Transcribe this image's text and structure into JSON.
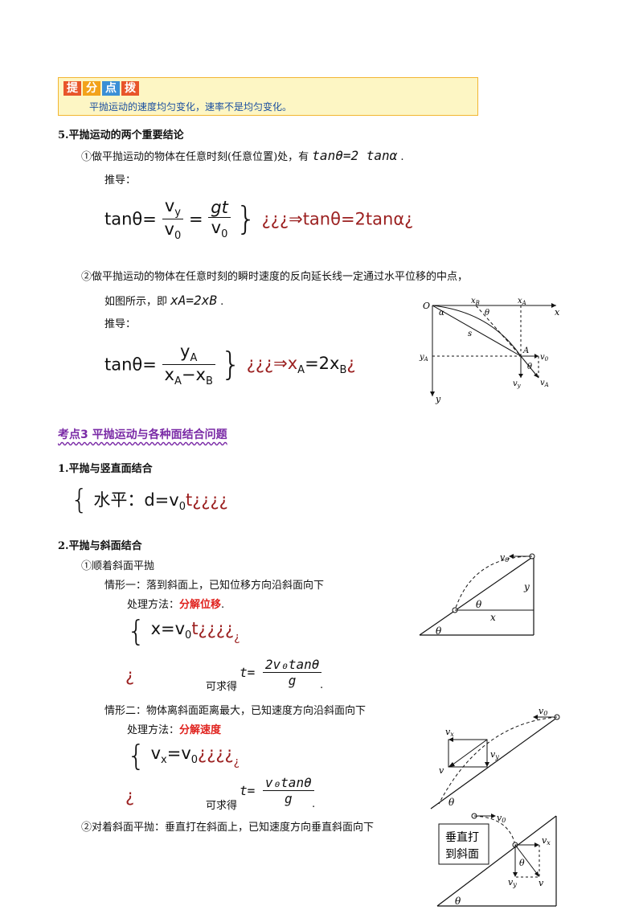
{
  "tip": {
    "tags": [
      "提",
      "分",
      "点",
      "拨"
    ],
    "tag_colors": [
      "#e8552a",
      "#f2a21a",
      "#3a8fd6",
      "#e8552a"
    ],
    "text": "平抛运动的速度均匀变化，速率不是均匀变化。"
  },
  "s5": {
    "heading": "5.平抛运动的两个重要结论",
    "c1_prefix": "①做平抛运动的物体在任意时刻(任意位置)处，有",
    "c1_formula": "tanθ=2 tanα",
    "c1_suffix": ".",
    "derive1": "推导：",
    "f1": {
      "lhs": "tanθ=",
      "n1": "v",
      "n1sub": "y",
      "d1": "v",
      "d1sub": "0",
      "eq": "=",
      "n2": "gt",
      "d2": "v",
      "d2sub": "0",
      "tail": "¿¿¿⇒tanθ=2tanα¿"
    },
    "c2_line1": "②做平抛运动的物体在任意时刻的瞬时速度的反向延长线一定通过水平位移的中点，",
    "c2_line2_prefix": "如图所示，即",
    "c2_formula": "xA=2xB",
    "c2_suffix": ".",
    "derive2": "推导：",
    "f2": {
      "lhs": "tanθ=",
      "num": "y",
      "numsub": "A",
      "den_a": "x",
      "den_asub": "A",
      "den_minus": "−",
      "den_b": "x",
      "den_bsub": "B",
      "tail1": "¿¿¿⇒x",
      "tail1sub": "A",
      "tail2": "=2x",
      "tail2sub": "B",
      "tail3": "¿"
    }
  },
  "fig1": {
    "O": "O",
    "x": "x",
    "y": "y",
    "xB": "x",
    "xBsub": "B",
    "xA": "x",
    "xAsub": "A",
    "alpha": "α",
    "theta": "θ",
    "s": "s",
    "A": "A",
    "yA": "y",
    "yAsub": "A",
    "v0": "v",
    "v0sub": "0",
    "vy": "v",
    "vysub": "y",
    "vA": "v",
    "vAsub": "A",
    "theta2": "θ"
  },
  "k3": {
    "heading": "考点3  平抛运动与各种面结合问题",
    "h1": "1.平抛与竖直面结合",
    "f_vertical": "水平：d=v",
    "f_vertical_sub": "0",
    "f_vertical_tail": "t¿¿¿¿",
    "h2": "2.平抛与斜面结合",
    "item1": "①顺着斜面平抛",
    "case1": "情形一：落到斜面上，已知位移方向沿斜面向下",
    "method1_prefix": "处理方法：",
    "method1_key": "分解位移",
    "method1_suffix": ".",
    "f_case1": "x=v",
    "f_case1_sub": "0",
    "f_case1_tail": "t¿¿¿¿",
    "f_case1_q": "¿",
    "f_case1_q2": "¿",
    "result_prefix": "可求得",
    "t1_lhs": "t=",
    "t1_num": "2v₀tanθ",
    "t1_den": "g",
    "t1_suffix": ".",
    "case2": "情形二：物体离斜面距离最大，已知速度方向沿斜面向下",
    "method2_prefix": "处理方法：",
    "method2_key": "分解速度",
    "f_case2": "v",
    "f_case2_sub": "x",
    "f_case2_mid": "=v",
    "f_case2_sub2": "0",
    "f_case2_tail": "¿¿¿¿",
    "f_case2_q": "¿",
    "f_case2_q2": "¿",
    "t2_lhs": "t=",
    "t2_num": "v₀tanθ",
    "t2_den": "g",
    "t2_suffix": ".",
    "item2": "②对着斜面平抛：垂直打在斜面上，已知速度方向垂直斜面向下"
  },
  "fig2": {
    "v0": "v",
    "v0sub": "0",
    "y": "y",
    "theta": "θ",
    "x": "x",
    "theta_base": "θ"
  },
  "fig3": {
    "v0": "v",
    "v0sub": "0",
    "vx": "v",
    "vxsub": "x",
    "vy": "v",
    "vysub": "y",
    "v": "v",
    "theta": "θ"
  },
  "fig4": {
    "v0": "v",
    "v0sub": "0",
    "label1": "垂直打",
    "label2": "到斜面",
    "vx": "v",
    "vxsub": "x",
    "theta": "θ",
    "vy": "v",
    "vysub": "y",
    "v": "v",
    "theta_base": "θ"
  }
}
